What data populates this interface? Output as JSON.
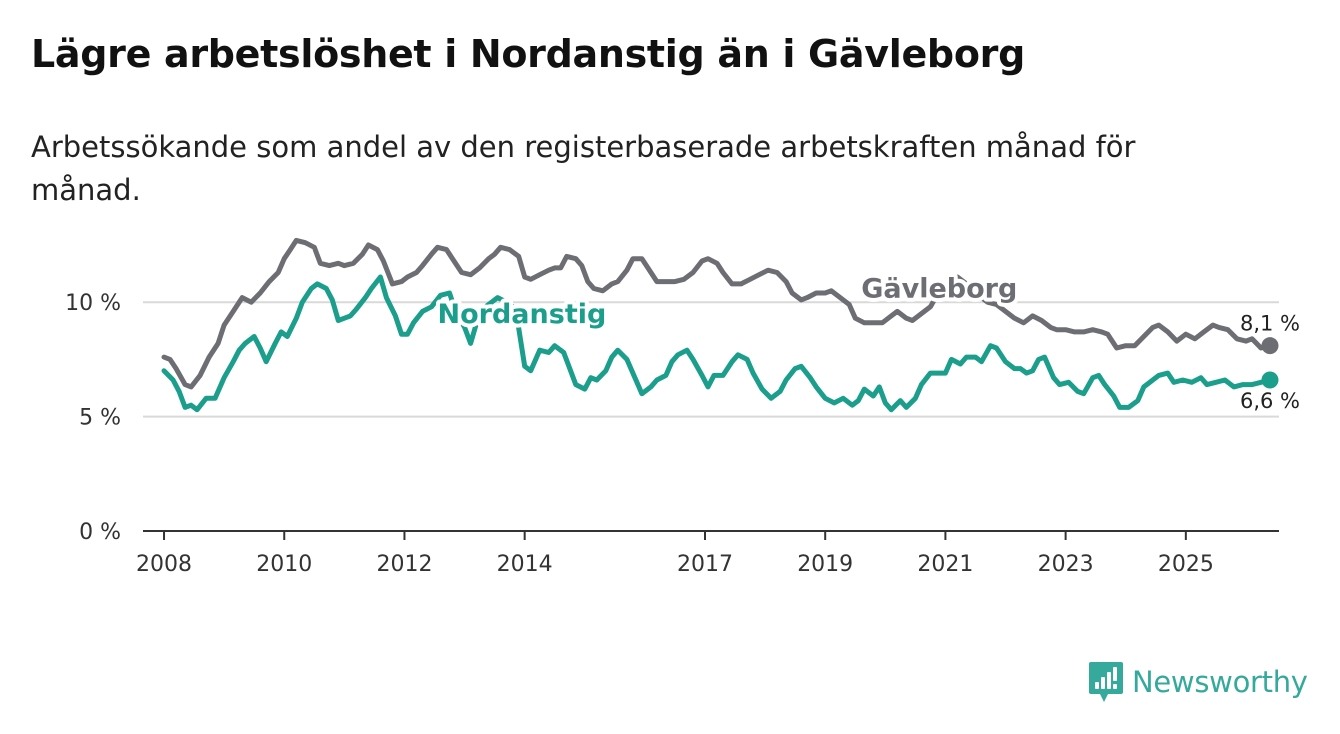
{
  "title": "Lägre arbetslöshet i Nordanstig än i Gävleborg",
  "subtitle": "Arbetssökande som andel av den registerbaserade arbetskraften månad för månad.",
  "brand": {
    "name": "Newsworthy",
    "icon": "newsworthy-logo-icon",
    "color": "#35a99b"
  },
  "chart_data": {
    "type": "line",
    "title": "Lägre arbetslöshet i Nordanstig än i Gävleborg",
    "xlabel": "",
    "ylabel": "",
    "xlim": [
      2007.65,
      2026.55
    ],
    "ylim": [
      0,
      12.5
    ],
    "grid": true,
    "y_ticks": [
      0,
      5,
      10
    ],
    "y_tick_labels": [
      "0 %",
      "5 %",
      "10 %"
    ],
    "x_ticks": [
      2008,
      2010,
      2012,
      2014,
      2017,
      2019,
      2021,
      2023,
      2025
    ],
    "x_tick_labels": [
      "2008",
      "2010",
      "2012",
      "2014",
      "2017",
      "2019",
      "2021",
      "2023",
      "2025"
    ],
    "series": [
      {
        "name": "Gävleborg",
        "color": "#6d6e73",
        "label": "Gävleborg",
        "end_label": "8,1 %",
        "points": [
          [
            2008.0,
            7.6
          ],
          [
            2008.1,
            7.5
          ],
          [
            2008.2,
            7.1
          ],
          [
            2008.35,
            6.4
          ],
          [
            2008.45,
            6.3
          ],
          [
            2008.6,
            6.8
          ],
          [
            2008.75,
            7.6
          ],
          [
            2008.9,
            8.2
          ],
          [
            2009.0,
            9.0
          ],
          [
            2009.15,
            9.6
          ],
          [
            2009.3,
            10.2
          ],
          [
            2009.45,
            10.0
          ],
          [
            2009.6,
            10.4
          ],
          [
            2009.75,
            10.9
          ],
          [
            2009.9,
            11.3
          ],
          [
            2010.0,
            11.9
          ],
          [
            2010.1,
            12.3
          ],
          [
            2010.2,
            12.7
          ],
          [
            2010.35,
            12.6
          ],
          [
            2010.5,
            12.4
          ],
          [
            2010.6,
            11.7
          ],
          [
            2010.75,
            11.6
          ],
          [
            2010.9,
            11.7
          ],
          [
            2011.0,
            11.6
          ],
          [
            2011.15,
            11.7
          ],
          [
            2011.3,
            12.1
          ],
          [
            2011.4,
            12.5
          ],
          [
            2011.55,
            12.3
          ],
          [
            2011.65,
            11.8
          ],
          [
            2011.8,
            10.8
          ],
          [
            2011.95,
            10.9
          ],
          [
            2012.05,
            11.1
          ],
          [
            2012.2,
            11.3
          ],
          [
            2012.3,
            11.6
          ],
          [
            2012.45,
            12.1
          ],
          [
            2012.55,
            12.4
          ],
          [
            2012.7,
            12.3
          ],
          [
            2012.8,
            11.9
          ],
          [
            2012.95,
            11.3
          ],
          [
            2013.1,
            11.2
          ],
          [
            2013.25,
            11.5
          ],
          [
            2013.4,
            11.9
          ],
          [
            2013.5,
            12.1
          ],
          [
            2013.6,
            12.4
          ],
          [
            2013.75,
            12.3
          ],
          [
            2013.9,
            12.0
          ],
          [
            2014.0,
            11.1
          ],
          [
            2014.1,
            11.0
          ],
          [
            2014.25,
            11.2
          ],
          [
            2014.4,
            11.4
          ],
          [
            2014.5,
            11.5
          ],
          [
            2014.6,
            11.5
          ],
          [
            2014.7,
            12.0
          ],
          [
            2014.85,
            11.9
          ],
          [
            2014.95,
            11.6
          ],
          [
            2015.05,
            10.9
          ],
          [
            2015.15,
            10.6
          ],
          [
            2015.3,
            10.5
          ],
          [
            2015.45,
            10.8
          ],
          [
            2015.55,
            10.9
          ],
          [
            2015.7,
            11.4
          ],
          [
            2015.8,
            11.9
          ],
          [
            2015.95,
            11.9
          ],
          [
            2016.05,
            11.5
          ],
          [
            2016.2,
            10.9
          ],
          [
            2016.35,
            10.9
          ],
          [
            2016.5,
            10.9
          ],
          [
            2016.65,
            11.0
          ],
          [
            2016.8,
            11.3
          ],
          [
            2016.95,
            11.8
          ],
          [
            2017.05,
            11.9
          ],
          [
            2017.2,
            11.7
          ],
          [
            2017.3,
            11.3
          ],
          [
            2017.45,
            10.8
          ],
          [
            2017.6,
            10.8
          ],
          [
            2017.75,
            11.0
          ],
          [
            2017.9,
            11.2
          ],
          [
            2018.05,
            11.4
          ],
          [
            2018.2,
            11.3
          ],
          [
            2018.35,
            10.9
          ],
          [
            2018.45,
            10.4
          ],
          [
            2018.6,
            10.1
          ],
          [
            2018.7,
            10.2
          ],
          [
            2018.85,
            10.4
          ],
          [
            2019.0,
            10.4
          ],
          [
            2019.1,
            10.5
          ],
          [
            2019.25,
            10.2
          ],
          [
            2019.4,
            9.9
          ],
          [
            2019.5,
            9.3
          ],
          [
            2019.65,
            9.1
          ],
          [
            2019.8,
            9.1
          ],
          [
            2019.95,
            9.1
          ],
          [
            2020.05,
            9.3
          ],
          [
            2020.2,
            9.6
          ],
          [
            2020.35,
            9.3
          ],
          [
            2020.45,
            9.2
          ],
          [
            2020.6,
            9.5
          ],
          [
            2020.75,
            9.8
          ],
          [
            2020.9,
            10.5
          ],
          [
            2021.05,
            10.9
          ],
          [
            2021.2,
            11.1
          ],
          [
            2021.35,
            10.8
          ],
          [
            2021.45,
            10.6
          ],
          [
            2021.55,
            10.3
          ],
          [
            2021.7,
            10.0
          ],
          [
            2021.85,
            9.9
          ],
          [
            2022.0,
            9.6
          ],
          [
            2022.15,
            9.3
          ],
          [
            2022.3,
            9.1
          ],
          [
            2022.45,
            9.4
          ],
          [
            2022.6,
            9.2
          ],
          [
            2022.75,
            8.9
          ],
          [
            2022.85,
            8.8
          ],
          [
            2023.0,
            8.8
          ],
          [
            2023.15,
            8.7
          ],
          [
            2023.3,
            8.7
          ],
          [
            2023.45,
            8.8
          ],
          [
            2023.6,
            8.7
          ],
          [
            2023.7,
            8.6
          ],
          [
            2023.85,
            8.0
          ],
          [
            2024.0,
            8.1
          ],
          [
            2024.15,
            8.1
          ],
          [
            2024.3,
            8.5
          ],
          [
            2024.45,
            8.9
          ],
          [
            2024.55,
            9.0
          ],
          [
            2024.7,
            8.7
          ],
          [
            2024.85,
            8.3
          ],
          [
            2025.0,
            8.6
          ],
          [
            2025.15,
            8.4
          ],
          [
            2025.3,
            8.7
          ],
          [
            2025.45,
            9.0
          ],
          [
            2025.55,
            8.9
          ],
          [
            2025.7,
            8.8
          ],
          [
            2025.85,
            8.4
          ],
          [
            2026.0,
            8.3
          ],
          [
            2026.1,
            8.4
          ],
          [
            2026.25,
            8.0
          ],
          [
            2026.4,
            8.1
          ]
        ]
      },
      {
        "name": "Nordanstig",
        "color": "#1b9e8c",
        "label": "Nordanstig",
        "end_label": "6,6 %",
        "points": [
          [
            2008.0,
            7.0
          ],
          [
            2008.15,
            6.6
          ],
          [
            2008.25,
            6.1
          ],
          [
            2008.35,
            5.4
          ],
          [
            2008.45,
            5.5
          ],
          [
            2008.55,
            5.3
          ],
          [
            2008.7,
            5.8
          ],
          [
            2008.85,
            5.8
          ],
          [
            2009.0,
            6.7
          ],
          [
            2009.15,
            7.4
          ],
          [
            2009.25,
            7.9
          ],
          [
            2009.35,
            8.2
          ],
          [
            2009.5,
            8.5
          ],
          [
            2009.6,
            8.0
          ],
          [
            2009.7,
            7.4
          ],
          [
            2009.85,
            8.2
          ],
          [
            2009.95,
            8.7
          ],
          [
            2010.05,
            8.5
          ],
          [
            2010.2,
            9.3
          ],
          [
            2010.3,
            10.0
          ],
          [
            2010.45,
            10.6
          ],
          [
            2010.55,
            10.8
          ],
          [
            2010.7,
            10.6
          ],
          [
            2010.8,
            10.1
          ],
          [
            2010.9,
            9.2
          ],
          [
            2011.0,
            9.3
          ],
          [
            2011.1,
            9.4
          ],
          [
            2011.2,
            9.7
          ],
          [
            2011.35,
            10.2
          ],
          [
            2011.45,
            10.6
          ],
          [
            2011.6,
            11.1
          ],
          [
            2011.7,
            10.2
          ],
          [
            2011.85,
            9.4
          ],
          [
            2011.95,
            8.6
          ],
          [
            2012.05,
            8.6
          ],
          [
            2012.15,
            9.1
          ],
          [
            2012.3,
            9.6
          ],
          [
            2012.45,
            9.8
          ],
          [
            2012.6,
            10.3
          ],
          [
            2012.75,
            10.4
          ],
          [
            2012.85,
            9.6
          ],
          [
            2013.0,
            8.9
          ],
          [
            2013.1,
            8.2
          ],
          [
            2013.2,
            9.1
          ],
          [
            2013.3,
            9.7
          ],
          [
            2013.45,
            10.0
          ],
          [
            2013.55,
            10.2
          ],
          [
            2013.7,
            10.0
          ],
          [
            2013.85,
            9.7
          ],
          [
            2014.0,
            7.2
          ],
          [
            2014.1,
            7.0
          ],
          [
            2014.25,
            7.9
          ],
          [
            2014.4,
            7.8
          ],
          [
            2014.5,
            8.1
          ],
          [
            2014.65,
            7.8
          ],
          [
            2014.75,
            7.1
          ],
          [
            2014.85,
            6.4
          ],
          [
            2015.0,
            6.2
          ],
          [
            2015.1,
            6.7
          ],
          [
            2015.2,
            6.6
          ],
          [
            2015.35,
            7.0
          ],
          [
            2015.45,
            7.6
          ],
          [
            2015.55,
            7.9
          ],
          [
            2015.7,
            7.5
          ],
          [
            2015.8,
            6.9
          ],
          [
            2015.95,
            6.0
          ],
          [
            2016.1,
            6.3
          ],
          [
            2016.2,
            6.6
          ],
          [
            2016.35,
            6.8
          ],
          [
            2016.45,
            7.4
          ],
          [
            2016.55,
            7.7
          ],
          [
            2016.7,
            7.9
          ],
          [
            2016.8,
            7.5
          ],
          [
            2016.95,
            6.8
          ],
          [
            2017.05,
            6.3
          ],
          [
            2017.15,
            6.8
          ],
          [
            2017.3,
            6.8
          ],
          [
            2017.45,
            7.4
          ],
          [
            2017.55,
            7.7
          ],
          [
            2017.7,
            7.5
          ],
          [
            2017.8,
            6.9
          ],
          [
            2017.95,
            6.2
          ],
          [
            2018.1,
            5.8
          ],
          [
            2018.25,
            6.1
          ],
          [
            2018.35,
            6.6
          ],
          [
            2018.5,
            7.1
          ],
          [
            2018.6,
            7.2
          ],
          [
            2018.75,
            6.7
          ],
          [
            2018.85,
            6.3
          ],
          [
            2019.0,
            5.8
          ],
          [
            2019.15,
            5.6
          ],
          [
            2019.3,
            5.8
          ],
          [
            2019.45,
            5.5
          ],
          [
            2019.55,
            5.7
          ],
          [
            2019.65,
            6.2
          ],
          [
            2019.8,
            5.9
          ],
          [
            2019.9,
            6.3
          ],
          [
            2020.0,
            5.6
          ],
          [
            2020.1,
            5.3
          ],
          [
            2020.25,
            5.7
          ],
          [
            2020.35,
            5.4
          ],
          [
            2020.5,
            5.8
          ],
          [
            2020.6,
            6.4
          ],
          [
            2020.75,
            6.9
          ],
          [
            2020.85,
            6.9
          ],
          [
            2021.0,
            6.9
          ],
          [
            2021.1,
            7.5
          ],
          [
            2021.25,
            7.3
          ],
          [
            2021.35,
            7.6
          ],
          [
            2021.5,
            7.6
          ],
          [
            2021.6,
            7.4
          ],
          [
            2021.75,
            8.1
          ],
          [
            2021.85,
            8.0
          ],
          [
            2022.0,
            7.4
          ],
          [
            2022.15,
            7.1
          ],
          [
            2022.25,
            7.1
          ],
          [
            2022.35,
            6.9
          ],
          [
            2022.45,
            7.0
          ],
          [
            2022.55,
            7.5
          ],
          [
            2022.65,
            7.6
          ],
          [
            2022.8,
            6.7
          ],
          [
            2022.9,
            6.4
          ],
          [
            2023.05,
            6.5
          ],
          [
            2023.2,
            6.1
          ],
          [
            2023.3,
            6.0
          ],
          [
            2023.45,
            6.7
          ],
          [
            2023.55,
            6.8
          ],
          [
            2023.65,
            6.4
          ],
          [
            2023.8,
            5.9
          ],
          [
            2023.9,
            5.4
          ],
          [
            2024.05,
            5.4
          ],
          [
            2024.2,
            5.7
          ],
          [
            2024.3,
            6.3
          ],
          [
            2024.45,
            6.6
          ],
          [
            2024.55,
            6.8
          ],
          [
            2024.7,
            6.9
          ],
          [
            2024.8,
            6.5
          ],
          [
            2024.95,
            6.6
          ],
          [
            2025.1,
            6.5
          ],
          [
            2025.25,
            6.7
          ],
          [
            2025.35,
            6.4
          ],
          [
            2025.5,
            6.5
          ],
          [
            2025.65,
            6.6
          ],
          [
            2025.8,
            6.3
          ],
          [
            2025.95,
            6.4
          ],
          [
            2026.1,
            6.4
          ],
          [
            2026.25,
            6.5
          ],
          [
            2026.4,
            6.6
          ]
        ]
      }
    ],
    "annotations": [
      {
        "text": "Gävleborg",
        "series": "Gävleborg",
        "x": 2019.6,
        "y": 10.2
      },
      {
        "text": "Nordanstig",
        "series": "Nordanstig",
        "x": 2012.55,
        "y": 9.1
      }
    ]
  }
}
